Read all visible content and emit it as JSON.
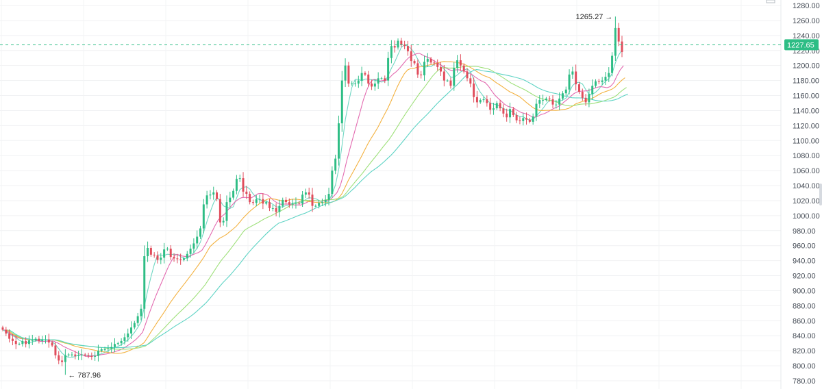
{
  "chart_data": {
    "type": "candlestick",
    "ylim": [
      780,
      1290
    ],
    "y_ticks": [
      780,
      800,
      820,
      840,
      860,
      880,
      900,
      920,
      940,
      960,
      980,
      1000,
      1020,
      1040,
      1060,
      1080,
      1100,
      1120,
      1140,
      1160,
      1180,
      1200,
      1220,
      1240,
      1260,
      1280
    ],
    "y_tick_labels": [
      "780.00",
      "800.00",
      "820.00",
      "840.00",
      "860.00",
      "880.00",
      "900.00",
      "920.00",
      "940.00",
      "960.00",
      "980.00",
      "1000.00",
      "1020.00",
      "1040.00",
      "1060.00",
      "1080.00",
      "1100.00",
      "1120.00",
      "1140.00",
      "1160.00",
      "1180.00",
      "1200.00",
      "1220.00",
      "1240.00",
      "1260.00",
      "1280.00"
    ],
    "grid": true,
    "current_price": 1227.65,
    "current_price_label": "1227.65",
    "annotations": [
      {
        "name": "high",
        "text": "1265.27 →",
        "value": 1265.27
      },
      {
        "name": "low",
        "text": "← 787.96",
        "value": 787.96
      }
    ],
    "closes": [
      848,
      843,
      836,
      833,
      829,
      829,
      833,
      829,
      834,
      834,
      836,
      833,
      835,
      835,
      831,
      827,
      814,
      807,
      805,
      814,
      815,
      815,
      813,
      814,
      815,
      814,
      813,
      812,
      813,
      820,
      822,
      822,
      823,
      825,
      829,
      830,
      833,
      838,
      843,
      851,
      857,
      866,
      876,
      946,
      957,
      948,
      947,
      941,
      944,
      955,
      956,
      945,
      943,
      942,
      941,
      943,
      949,
      956,
      963,
      972,
      983,
      1015,
      1027,
      1028,
      1031,
      1022,
      991,
      993,
      1018,
      1024,
      1033,
      1049,
      1050,
      1032,
      1029,
      1018,
      1017,
      1022,
      1022,
      1016,
      1018,
      1010,
      1010,
      1005,
      1013,
      1021,
      1018,
      1015,
      1016,
      1017,
      1016,
      1028,
      1031,
      1028,
      1013,
      1013,
      1017,
      1018,
      1021,
      1029,
      1060,
      1076,
      1123,
      1180,
      1200,
      1176,
      1176,
      1176,
      1180,
      1190,
      1188,
      1176,
      1172,
      1176,
      1183,
      1183,
      1180,
      1210,
      1226,
      1224,
      1233,
      1228,
      1226,
      1219,
      1206,
      1203,
      1188,
      1187,
      1205,
      1209,
      1204,
      1203,
      1198,
      1192,
      1180,
      1180,
      1173,
      1197,
      1207,
      1200,
      1192,
      1183,
      1176,
      1158,
      1151,
      1154,
      1155,
      1150,
      1141,
      1143,
      1150,
      1143,
      1136,
      1131,
      1142,
      1134,
      1127,
      1126,
      1130,
      1128,
      1125,
      1132,
      1149,
      1154,
      1154,
      1156,
      1155,
      1148,
      1148,
      1156,
      1163,
      1168,
      1188,
      1192,
      1175,
      1165,
      1157,
      1151,
      1162,
      1173,
      1179,
      1178,
      1180,
      1185,
      1190,
      1213,
      1250,
      1232,
      1218
    ]
  }
}
